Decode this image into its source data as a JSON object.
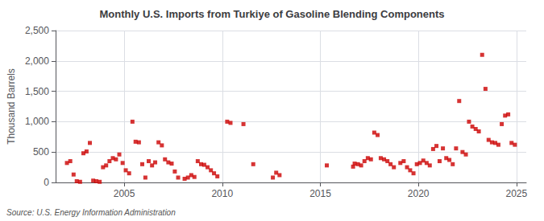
{
  "chart_data": {
    "type": "scatter",
    "title": "Monthly U.S. Imports from Turkiye of Gasoline Blending Components",
    "ylabel": "Thousand Barrels",
    "annotation": "Source: U.S. Energy Information Administration",
    "color": "#cc0000",
    "marker": "square",
    "grid": true,
    "xlim": [
      2001.5,
      2025.5
    ],
    "xticks": [
      2005,
      2010,
      2015,
      2020,
      2025
    ],
    "ylim": [
      0,
      2500
    ],
    "yticks": [
      0,
      500,
      {
        "value": 1000,
        "label": "1,000"
      },
      {
        "value": 1500,
        "label": "1,500"
      },
      {
        "value": 2000,
        "label": "2,000"
      },
      {
        "value": 2500,
        "label": "2,500"
      }
    ],
    "x": [
      2002.08,
      2002.25,
      2002.42,
      2002.58,
      2002.75,
      2002.92,
      2003.08,
      2003.25,
      2003.42,
      2003.58,
      2003.75,
      2003.92,
      2004.08,
      2004.25,
      2004.42,
      2004.58,
      2004.75,
      2004.92,
      2005.08,
      2005.25,
      2005.42,
      2005.58,
      2005.75,
      2005.92,
      2006.08,
      2006.25,
      2006.42,
      2006.58,
      2006.75,
      2006.92,
      2007.08,
      2007.25,
      2007.42,
      2007.58,
      2007.75,
      2008.08,
      2008.25,
      2008.42,
      2008.58,
      2008.75,
      2008.92,
      2009.08,
      2009.25,
      2009.42,
      2009.58,
      2009.75,
      2010.25,
      2010.42,
      2011.08,
      2011.58,
      2012.58,
      2012.75,
      2012.92,
      2015.33,
      2016.67,
      2016.75,
      2016.92,
      2017.08,
      2017.25,
      2017.42,
      2017.58,
      2017.75,
      2017.92,
      2018.08,
      2018.25,
      2018.42,
      2018.58,
      2018.75,
      2019.08,
      2019.25,
      2019.42,
      2019.58,
      2019.75,
      2019.92,
      2020.08,
      2020.25,
      2020.42,
      2020.58,
      2020.75,
      2020.92,
      2021.08,
      2021.25,
      2021.42,
      2021.58,
      2021.75,
      2021.92,
      2022.08,
      2022.25,
      2022.42,
      2022.58,
      2022.75,
      2022.92,
      2023.08,
      2023.25,
      2023.42,
      2023.58,
      2023.75,
      2023.92,
      2024.08,
      2024.25,
      2024.42,
      2024.58,
      2024.75,
      2024.92
    ],
    "values": [
      320,
      350,
      130,
      20,
      10,
      480,
      510,
      650,
      30,
      20,
      10,
      250,
      280,
      350,
      400,
      380,
      460,
      320,
      200,
      150,
      1000,
      670,
      660,
      300,
      80,
      350,
      280,
      330,
      660,
      610,
      380,
      330,
      310,
      180,
      80,
      60,
      80,
      120,
      90,
      350,
      300,
      290,
      250,
      200,
      150,
      100,
      1000,
      980,
      960,
      300,
      80,
      160,
      120,
      280,
      260,
      310,
      300,
      280,
      350,
      400,
      380,
      820,
      780,
      400,
      380,
      350,
      300,
      250,
      320,
      350,
      250,
      200,
      150,
      300,
      320,
      360,
      320,
      280,
      550,
      600,
      350,
      560,
      400,
      370,
      300,
      560,
      1340,
      500,
      460,
      1000,
      920,
      880,
      840,
      2100,
      1540,
      700,
      660,
      650,
      620,
      960,
      1100,
      1120,
      650,
      620
    ]
  }
}
